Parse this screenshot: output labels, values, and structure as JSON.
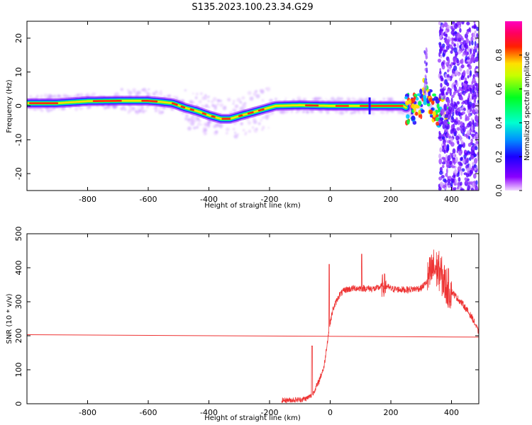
{
  "chart_data": [
    {
      "type": "heatmap",
      "title": "S135.2023.100.23.34.G29",
      "xlabel": "Height of straight line (km)",
      "ylabel": "Frequency (Hz)",
      "xlim": [
        -1000,
        490
      ],
      "ylim": [
        -25,
        25
      ],
      "x_ticks": [
        -800,
        -600,
        -400,
        -200,
        0,
        200,
        400
      ],
      "y_ticks": [
        -20,
        -10,
        0,
        10,
        20
      ],
      "grid": false,
      "colormap": "gist_ncar-like (purple-blue-cyan-green-yellow-red-magenta)",
      "colorbar": {
        "label": "Normalized spectral amplitude",
        "ticks": [
          0.0,
          0.2,
          0.4,
          0.6,
          0.8
        ],
        "range": [
          0,
          1
        ]
      },
      "ridge": [
        {
          "x": -1000,
          "y": 0.8
        },
        {
          "x": -900,
          "y": 0.8
        },
        {
          "x": -800,
          "y": 1.4
        },
        {
          "x": -700,
          "y": 1.5
        },
        {
          "x": -600,
          "y": 1.5
        },
        {
          "x": -560,
          "y": 1.2
        },
        {
          "x": -520,
          "y": 0.8
        },
        {
          "x": -480,
          "y": -0.5
        },
        {
          "x": -440,
          "y": -1.5
        },
        {
          "x": -400,
          "y": -2.8
        },
        {
          "x": -360,
          "y": -3.8
        },
        {
          "x": -330,
          "y": -3.8
        },
        {
          "x": -300,
          "y": -3.0
        },
        {
          "x": -260,
          "y": -2.0
        },
        {
          "x": -220,
          "y": -1.0
        },
        {
          "x": -180,
          "y": 0.0
        },
        {
          "x": -100,
          "y": 0.2
        },
        {
          "x": 0,
          "y": 0.0
        },
        {
          "x": 100,
          "y": 0.0
        },
        {
          "x": 200,
          "y": 0.0
        },
        {
          "x": 240,
          "y": 0.0
        },
        {
          "x": 260,
          "y": -1.0
        },
        {
          "x": 280,
          "y": -0.5
        },
        {
          "x": 300,
          "y": 1.0
        },
        {
          "x": 310,
          "y": 4.0
        },
        {
          "x": 320,
          "y": 3.0
        },
        {
          "x": 340,
          "y": -1.0
        },
        {
          "x": 360,
          "y": -2.0
        }
      ],
      "scatter_region": {
        "x": [
          400,
          490
        ],
        "y": [
          -25,
          25
        ]
      }
    },
    {
      "type": "line",
      "xlabel": "Height of straight line (km)",
      "ylabel": "SNR (10 * v/v)",
      "xlim": [
        -1000,
        490
      ],
      "ylim": [
        0,
        500
      ],
      "x_ticks": [
        -800,
        -600,
        -400,
        -200,
        0,
        200,
        400
      ],
      "y_ticks": [
        0,
        100,
        200,
        300,
        400,
        500
      ],
      "grid": false,
      "series": [
        {
          "color": "#ee3333",
          "x": [
            -160,
            -100,
            -80,
            -60,
            -40,
            -20,
            -10,
            0,
            10,
            30,
            50,
            80,
            100,
            150,
            180,
            200,
            250,
            300,
            320,
            340,
            360,
            380,
            400,
            440,
            470,
            490
          ],
          "y": [
            10,
            12,
            15,
            25,
            60,
            110,
            180,
            240,
            280,
            320,
            335,
            340,
            340,
            338,
            350,
            338,
            335,
            340,
            360,
            400,
            390,
            350,
            330,
            290,
            250,
            210
          ]
        },
        {
          "color": "#ee3333",
          "x": [
            -1000,
            490
          ],
          "y": [
            203,
            196
          ]
        }
      ]
    }
  ],
  "colors": {
    "snr_line": "#ee3333",
    "axis": "#000000"
  }
}
